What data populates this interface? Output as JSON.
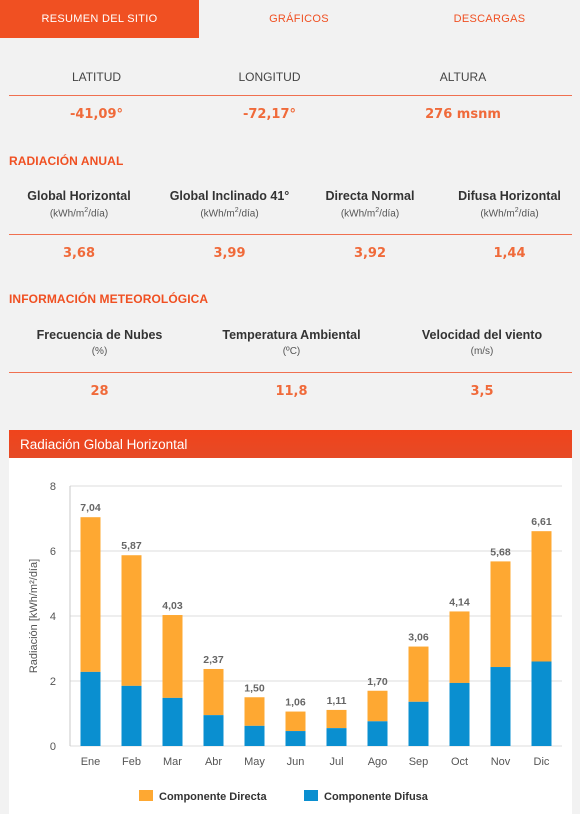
{
  "tabs": [
    {
      "label": "RESUMEN DEL SITIO",
      "active": true
    },
    {
      "label": "GRÁFICOS",
      "active": false
    },
    {
      "label": "DESCARGAS",
      "active": false
    }
  ],
  "location": {
    "latitud_label": "LATITUD",
    "latitud_value": "-41,09°",
    "longitud_label": "LONGITUD",
    "longitud_value": "-72,17°",
    "altura_label": "ALTURA",
    "altura_value": "276 msnm"
  },
  "radiacion": {
    "title": "RADIACIÓN ANUAL",
    "items": [
      {
        "label": "Global Horizontal",
        "unit_a": "(kWh/m",
        "unit_b": "/día)",
        "value": "3,68"
      },
      {
        "label": "Global Inclinado 41°",
        "unit_a": "(kWh/m",
        "unit_b": "/día)",
        "value": "3,99"
      },
      {
        "label": "Directa Normal",
        "unit_a": "(kWh/m",
        "unit_b": "/día)",
        "value": "3,92"
      },
      {
        "label": "Difusa Horizontal",
        "unit_a": "(kWh/m",
        "unit_b": "/día)",
        "value": "1,44"
      }
    ]
  },
  "meteo": {
    "title": "INFORMACIÓN METEOROLÓGICA",
    "items": [
      {
        "label": "Frecuencia de Nubes",
        "unit": "(%)",
        "value": "28"
      },
      {
        "label": "Temperatura Ambiental",
        "unit": "(ºC)",
        "value": "11,8"
      },
      {
        "label": "Velocidad del viento",
        "unit": "(m/s)",
        "value": "3,5"
      }
    ]
  },
  "chart_header": "Radiación Global Horizontal",
  "chart_data": {
    "type": "bar",
    "stacked": true,
    "categories": [
      "Ene",
      "Feb",
      "Mar",
      "Abr",
      "May",
      "Jun",
      "Jul",
      "Ago",
      "Sep",
      "Oct",
      "Nov",
      "Dic"
    ],
    "series": [
      {
        "name": "Componente Difusa",
        "color": "#0a8fd0",
        "values": [
          2.28,
          1.85,
          1.48,
          0.95,
          0.62,
          0.46,
          0.55,
          0.76,
          1.36,
          1.94,
          2.43,
          2.6
        ]
      },
      {
        "name": "Componente Directa",
        "color": "#fea832",
        "values": [
          4.76,
          4.02,
          2.55,
          1.42,
          0.88,
          0.6,
          0.56,
          0.94,
          1.7,
          2.2,
          3.25,
          4.01
        ]
      }
    ],
    "totals": [
      "7,04",
      "5,87",
      "4,03",
      "2,37",
      "1,50",
      "1,06",
      "1,11",
      "1,70",
      "3,06",
      "4,14",
      "5,68",
      "6,61"
    ],
    "ylabel": "Radiación [kWh/m²/día]",
    "ylim": [
      0,
      8
    ],
    "yticks": [
      "0",
      "2",
      "4",
      "6",
      "8"
    ],
    "grid": true,
    "legend": "bottom",
    "legend_order": [
      "Componente Directa",
      "Componente Difusa"
    ]
  }
}
